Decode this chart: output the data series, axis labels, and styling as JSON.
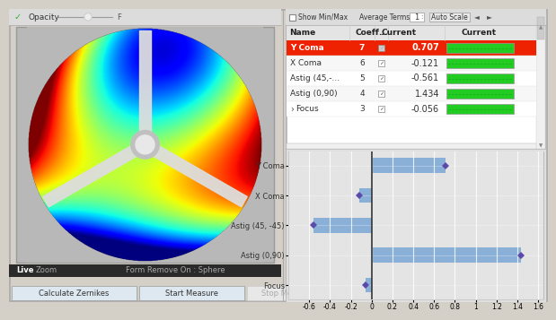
{
  "bg_color": "#d4d0c8",
  "panel_bg": "#c8c8c8",
  "right_bg": "#e8e8e8",
  "toolbar_bg": "#3a3a3a",
  "table_row_highlight": "#ee2200",
  "table_rows": [
    {
      "name": "Y Coma",
      "coeff": "7",
      "current": "0.707",
      "highlight": true
    },
    {
      "name": "X Coma",
      "coeff": "6",
      "current": "-0.121",
      "highlight": false
    },
    {
      "name": "Astig (45,-...",
      "coeff": "5",
      "current": "-0.561",
      "highlight": false
    },
    {
      "name": "Astig (0,90)",
      "coeff": "4",
      "current": "1.434",
      "highlight": false
    },
    {
      "name": "Focus",
      "coeff": "3",
      "current": "-0.056",
      "highlight": false
    }
  ],
  "chart_categories": [
    "Y Coma",
    "X Coma",
    "Astig (45, -45)",
    "Astig (0,90)",
    "Focus"
  ],
  "chart_values": [
    0.707,
    -0.121,
    -0.561,
    1.434,
    -0.056
  ],
  "chart_xlim": [
    -0.8,
    1.65
  ],
  "chart_xticks": [
    -0.6,
    -0.4,
    -0.2,
    0.0,
    0.2,
    0.4,
    0.6,
    0.8,
    1.0,
    1.2,
    1.4,
    1.6
  ],
  "bar_color": "#8ab0d8",
  "marker_color": "#5a4aaa",
  "opacity_label": "Opacity",
  "live_label": "Live",
  "zoom_label": "Zoom",
  "form_label": "Form Remove On : Sphere",
  "calc_btn": "Calculate Zernikes",
  "start_btn": "Start Measure",
  "stop_btn": "Stop Measure",
  "show_minmax": "Show Min/Max",
  "avg_terms": "Average Terms",
  "auto_scale": "Auto Scale"
}
